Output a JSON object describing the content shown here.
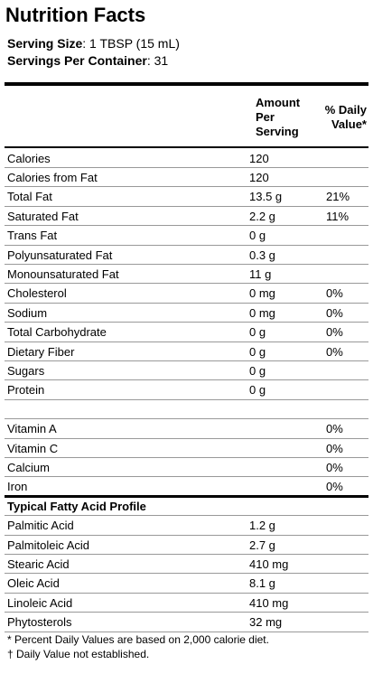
{
  "header": {
    "title": "Nutrition Facts",
    "serving_size_label": "Serving Size",
    "serving_size": ": 1 TBSP (15 mL)",
    "servings_label": "Servings Per Container",
    "servings": ": 31"
  },
  "table": {
    "columns": [
      "Amount Per Serving",
      "% Daily Value*"
    ],
    "rows": [
      [
        "Calories",
        "120",
        null
      ],
      [
        "Calories from Fat",
        "120",
        null
      ],
      [
        "Total Fat",
        "13.5 g",
        "21%"
      ],
      [
        "Saturated Fat",
        "2.2 g",
        "11%"
      ],
      [
        "Trans Fat",
        "0 g",
        null
      ],
      [
        "Polyunsaturated Fat",
        "0.3 g",
        null
      ],
      [
        "Monounsaturated Fat",
        "11 g",
        null
      ],
      [
        "Cholesterol",
        "0 mg",
        "0%"
      ],
      [
        "Sodium",
        "0 mg",
        "0%"
      ],
      [
        "Total Carbohydrate",
        "0 g",
        "0%"
      ],
      [
        "Dietary Fiber",
        "0 g",
        "0%"
      ],
      [
        "Sugars",
        "0 g",
        null
      ],
      [
        "Protein",
        "0 g",
        null
      ]
    ]
  },
  "vitamins": {
    "rows": [
      [
        "Vitamin A",
        "0%"
      ],
      [
        "Vitamin C",
        "0%"
      ],
      [
        "Calcium",
        "0%"
      ],
      [
        "Iron",
        "0%"
      ]
    ]
  },
  "fatty_acids": {
    "title": "Typical Fatty Acid Profile",
    "rows": [
      [
        "Palmitic Acid",
        "1.2 g"
      ],
      [
        "Palmitoleic Acid",
        "2.7 g"
      ],
      [
        "Stearic Acid",
        "410 mg"
      ],
      [
        "Oleic Acid",
        "8.1 g"
      ],
      [
        "Linoleic Acid",
        "410 mg"
      ],
      [
        "Phytosterols",
        "32 mg"
      ]
    ]
  },
  "footnotes": [
    "* Percent Daily Values are based on 2,000 calorie diet.",
    "† Daily Value not established."
  ]
}
